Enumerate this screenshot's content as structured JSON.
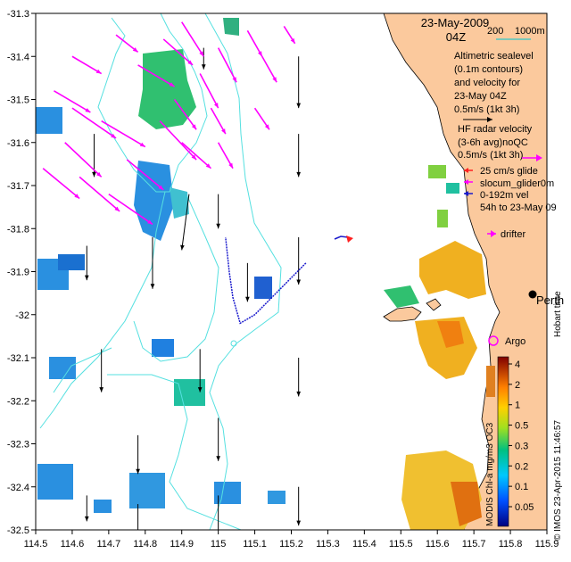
{
  "header": {
    "date": "23-May-2009",
    "time": "04Z",
    "scale_200": "200",
    "scale_1000": "1000m"
  },
  "legend": {
    "sealevel_lines": [
      "Altimetric sealevel",
      "(0.1m contours)",
      "and velocity for",
      "23-May 04Z"
    ],
    "sealevel_speed": "0.5m/s (1kt 3h)",
    "radar_lines": [
      "HF radar velocity",
      "(3-6h avg)noQC"
    ],
    "radar_speed": "0.5m/s (1kt 3h)",
    "glider_lines": [
      "25 cm/s glide",
      "slocum_glider0m",
      "0-192m vel",
      "54h to 23-May 09"
    ],
    "drifter": "drifter",
    "argo": "Argo",
    "perth": "Perth"
  },
  "side_text": {
    "hobart": "Hobart time",
    "credit": "© IMOS 23-Apr-2015 11:46:57",
    "colorbar_title": "MODIS Chl-a mg/m3 OC3"
  },
  "colorbar": {
    "ticks": [
      "4",
      "2",
      "1",
      "0.5",
      "0.3",
      "0.2",
      "0.1",
      "0.05"
    ]
  },
  "colors": {
    "land": "#fbc99d",
    "radar": "#ff00ff",
    "contour": "#55e0e0",
    "glider": "#1a1acc",
    "scale_line": "#30c8c8"
  },
  "chart_data": {
    "type": "map",
    "xlabel": "",
    "ylabel": "",
    "xlim": [
      114.5,
      115.9
    ],
    "ylim": [
      -32.5,
      -31.3
    ],
    "x_ticks": [
      114.5,
      114.6,
      114.7,
      114.8,
      114.9,
      115,
      115.1,
      115.2,
      115.3,
      115.4,
      115.5,
      115.6,
      115.7,
      115.8,
      115.9
    ],
    "y_ticks": [
      -31.3,
      -31.4,
      -31.5,
      -31.6,
      -31.7,
      -31.8,
      -31.9,
      -32,
      -32.1,
      -32.2,
      -32.3,
      -32.4,
      -32.5
    ],
    "x_tick_labels": [
      "114.5",
      "114.6",
      "114.7",
      "114.8",
      "114.9",
      "115",
      "115.1",
      "115.2",
      "115.3",
      "115.4",
      "115.5",
      "115.6",
      "115.7",
      "115.8",
      "115.9"
    ],
    "y_tick_labels": [
      "-31.3",
      "-31.4",
      "-31.5",
      "-31.6",
      "-31.7",
      "-31.8",
      "-31.9",
      "-32",
      "-32.1",
      "-32.2",
      "-32.3",
      "-32.4",
      "-32.5"
    ],
    "perth": [
      115.86,
      -31.95
    ],
    "argo": [
      115.75,
      -32.07
    ],
    "drifter": [
      115.36,
      -31.82
    ],
    "glider_track": [
      [
        115.24,
        -31.88
      ],
      [
        115.17,
        -31.94
      ],
      [
        115.1,
        -32.0
      ],
      [
        115.06,
        -32.02
      ],
      [
        115.04,
        -31.96
      ],
      [
        115.03,
        -31.9
      ],
      [
        115.02,
        -31.82
      ]
    ],
    "altimetry_vectors": [
      [
        114.66,
        -31.58,
        0.0,
        -0.1
      ],
      [
        114.92,
        -31.72,
        -0.02,
        -0.13
      ],
      [
        114.82,
        -31.82,
        0.0,
        -0.12
      ],
      [
        114.64,
        -31.84,
        0.0,
        -0.08
      ],
      [
        114.68,
        -32.08,
        0.0,
        -0.1
      ],
      [
        114.95,
        -32.08,
        0.0,
        -0.1
      ],
      [
        115.08,
        -31.88,
        0.0,
        -0.09
      ],
      [
        115.22,
        -31.58,
        0.0,
        -0.1
      ],
      [
        115.22,
        -31.82,
        0.0,
        -0.11
      ],
      [
        115.22,
        -32.1,
        0.0,
        -0.09
      ],
      [
        115.22,
        -32.4,
        0.0,
        -0.09
      ],
      [
        115.0,
        -32.24,
        0.0,
        -0.1
      ],
      [
        115.0,
        -32.42,
        0.0,
        -0.1
      ],
      [
        114.78,
        -32.28,
        0.0,
        -0.09
      ],
      [
        114.78,
        -32.44,
        0.0,
        -0.09
      ],
      [
        114.64,
        -32.42,
        0.0,
        -0.06
      ],
      [
        115.0,
        -31.72,
        0.0,
        -0.08
      ],
      [
        115.22,
        -31.4,
        0.0,
        -0.12
      ],
      [
        114.96,
        -31.38,
        0.0,
        -0.05
      ]
    ],
    "radar_vectors": [
      [
        114.58,
        -31.6,
        0.1,
        -0.08
      ],
      [
        114.62,
        -31.68,
        0.11,
        -0.08
      ],
      [
        114.55,
        -31.48,
        0.1,
        -0.05
      ],
      [
        114.6,
        -31.4,
        0.08,
        -0.04
      ],
      [
        114.68,
        -31.55,
        0.12,
        -0.06
      ],
      [
        114.7,
        -31.72,
        0.12,
        -0.07
      ],
      [
        114.75,
        -31.64,
        0.1,
        -0.07
      ],
      [
        114.78,
        -31.42,
        0.1,
        -0.05
      ],
      [
        114.84,
        -31.55,
        0.1,
        -0.09
      ],
      [
        114.88,
        -31.5,
        0.06,
        -0.07
      ],
      [
        114.95,
        -31.44,
        0.05,
        -0.08
      ],
      [
        115.0,
        -31.38,
        0.05,
        -0.08
      ],
      [
        114.98,
        -31.52,
        0.04,
        -0.06
      ],
      [
        114.9,
        -31.32,
        0.06,
        -0.08
      ],
      [
        115.08,
        -31.34,
        0.04,
        -0.06
      ],
      [
        115.12,
        -31.4,
        0.04,
        -0.06
      ],
      [
        115.1,
        -31.52,
        0.04,
        -0.05
      ],
      [
        114.85,
        -31.36,
        0.08,
        -0.06
      ],
      [
        114.72,
        -31.35,
        0.06,
        -0.04
      ],
      [
        114.6,
        -31.52,
        0.12,
        -0.07
      ],
      [
        114.52,
        -31.66,
        0.1,
        -0.07
      ],
      [
        114.9,
        -31.6,
        0.08,
        -0.06
      ],
      [
        115.0,
        -31.6,
        0.04,
        -0.06
      ],
      [
        115.18,
        -31.33,
        0.03,
        -0.04
      ]
    ]
  }
}
